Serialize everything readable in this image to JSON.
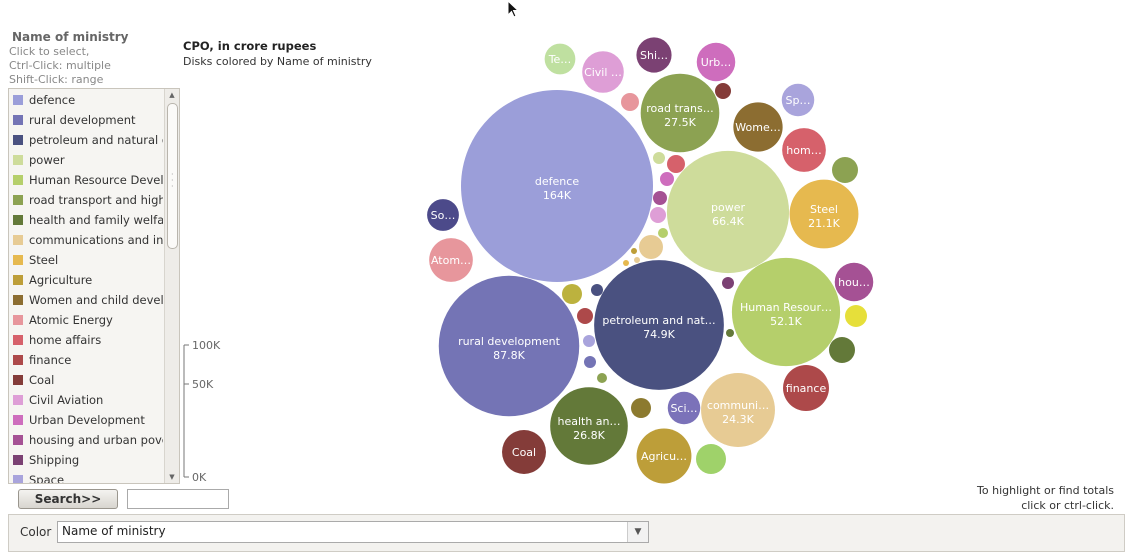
{
  "legend": {
    "title": "Name of ministry",
    "hint_lines": [
      "Click to select,",
      "Ctrl-Click: multiple",
      "Shift-Click: range"
    ],
    "items": [
      {
        "label": "defence",
        "color": "#9b9ed9"
      },
      {
        "label": "rural development",
        "color": "#7474b5"
      },
      {
        "label": "petroleum and natural gas",
        "color": "#4a5180"
      },
      {
        "label": "power",
        "color": "#cedc9b"
      },
      {
        "label": "Human Resource Development",
        "color": "#b5cf6b"
      },
      {
        "label": "road transport and highways",
        "color": "#8ca252"
      },
      {
        "label": "health and family welfare",
        "color": "#637939"
      },
      {
        "label": "communications and information technology",
        "color": "#e7cb94"
      },
      {
        "label": "Steel",
        "color": "#e6b94f"
      },
      {
        "label": "Agriculture",
        "color": "#bd9e39"
      },
      {
        "label": "Women and child development",
        "color": "#8c6d31"
      },
      {
        "label": "Atomic Energy",
        "color": "#e7969c"
      },
      {
        "label": "home affairs",
        "color": "#d6616b"
      },
      {
        "label": "finance",
        "color": "#ad494a"
      },
      {
        "label": "Coal",
        "color": "#843c39"
      },
      {
        "label": "Civil Aviation",
        "color": "#de9ed6"
      },
      {
        "label": "Urban Development",
        "color": "#ce6dbd"
      },
      {
        "label": "housing and urban poverty alleviation",
        "color": "#a55194"
      },
      {
        "label": "Shipping",
        "color": "#7b4173"
      },
      {
        "label": "Space",
        "color": "#a9a4dc"
      }
    ]
  },
  "search": {
    "button_label": "Search>>",
    "placeholder": ""
  },
  "chart_data": {
    "type": "bubble",
    "title": "CPO, in crore rupees",
    "subtitle": "Disks colored by Name of ministry",
    "size_legend": {
      "ticks": [
        "100K",
        "50K",
        "0K"
      ]
    },
    "bubbles": [
      {
        "name": "defence",
        "label": "defence",
        "value": 164000,
        "value_label": "164K",
        "color": "#9b9ed9"
      },
      {
        "name": "rural development",
        "label": "rural development",
        "value": 87800,
        "value_label": "87.8K",
        "color": "#7474b5"
      },
      {
        "name": "petroleum and natural gas",
        "label": "petroleum and nat…",
        "value": 74900,
        "value_label": "74.9K",
        "color": "#4a5180"
      },
      {
        "name": "power",
        "label": "power",
        "value": 66400,
        "value_label": "66.4K",
        "color": "#cedc9b"
      },
      {
        "name": "Human Resource Development",
        "label": "Human Resour…",
        "value": 52100,
        "value_label": "52.1K",
        "color": "#b5cf6b"
      },
      {
        "name": "road transport and highways",
        "label": "road trans…",
        "value": 27500,
        "value_label": "27.5K",
        "color": "#8ca252"
      },
      {
        "name": "health and family welfare",
        "label": "health an…",
        "value": 26800,
        "value_label": "26.8K",
        "color": "#637939"
      },
      {
        "name": "communications and information technology",
        "label": "communi…",
        "value": 24300,
        "value_label": "24.3K",
        "color": "#e7cb94"
      },
      {
        "name": "Steel",
        "label": "Steel",
        "value": 21100,
        "value_label": "21.1K",
        "color": "#e6b94f"
      },
      {
        "name": "Agriculture",
        "label": "Agricu…",
        "value": 13400,
        "color": "#bd9e39"
      },
      {
        "name": "Women and child development",
        "label": "Wome…",
        "value": 10800,
        "color": "#8c6d31"
      },
      {
        "name": "Coal",
        "label": "Coal",
        "value": 8600,
        "color": "#843c39"
      },
      {
        "name": "finance",
        "label": "finance",
        "value": 9400,
        "color": "#ad494a"
      },
      {
        "name": "home affairs",
        "label": "hom…",
        "value": 8500,
        "color": "#d6616b"
      },
      {
        "name": "Atomic Energy",
        "label": "Atom…",
        "value": 8500,
        "color": "#e7969c"
      },
      {
        "name": "Civil Aviation",
        "label": "Civil …",
        "value": 7700,
        "color": "#de9ed6"
      },
      {
        "name": "Urban Development",
        "label": "Urb…",
        "value": 6600,
        "color": "#ce6dbd"
      },
      {
        "name": "housing and urban poverty alleviation",
        "label": "hou…",
        "value": 6600,
        "color": "#a55194"
      },
      {
        "name": "Shipping",
        "label": "Shi…",
        "value": 5500,
        "color": "#7b4173"
      },
      {
        "name": "Space",
        "label": "Sp…",
        "value": 4700,
        "color": "#a9a4dc"
      },
      {
        "name": "Science",
        "label": "Sci…",
        "value": 4700,
        "color": "#7b72b9"
      },
      {
        "name": "Textiles",
        "label": "Te…",
        "value": 4200,
        "color": "#bfe0a0"
      },
      {
        "name": "Social Justice",
        "label": "So…",
        "value": 4500,
        "color": "#4c4a8a"
      }
    ]
  },
  "hint": {
    "line1": "To highlight or find totals",
    "line2": "click or ctrl-click."
  },
  "color_control": {
    "label": "Color",
    "selected": "Name of ministry"
  }
}
